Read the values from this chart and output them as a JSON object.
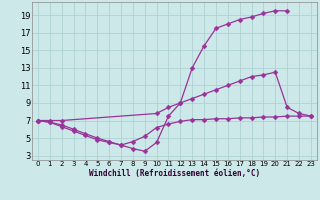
{
  "xlabel": "Windchill (Refroidissement éolien,°C)",
  "bg_color": "#cce8e8",
  "line_color": "#993399",
  "xlim": [
    -0.5,
    23.5
  ],
  "ylim": [
    2.5,
    20.5
  ],
  "xticks": [
    0,
    1,
    2,
    3,
    4,
    5,
    6,
    7,
    8,
    9,
    10,
    11,
    12,
    13,
    14,
    15,
    16,
    17,
    18,
    19,
    20,
    21,
    22,
    23
  ],
  "yticks": [
    3,
    5,
    7,
    9,
    11,
    13,
    15,
    17,
    19
  ],
  "curve_upper_x": [
    0,
    1,
    2,
    3,
    4,
    5,
    6,
    7,
    8,
    9,
    10,
    11,
    12,
    13,
    14,
    15,
    16,
    17,
    18,
    19,
    20,
    21
  ],
  "curve_upper_y": [
    7.0,
    6.8,
    6.5,
    6.0,
    5.5,
    5.0,
    4.6,
    4.2,
    3.8,
    3.5,
    4.5,
    7.5,
    9.0,
    13.0,
    15.5,
    17.5,
    18.0,
    18.5,
    18.8,
    19.2,
    19.5,
    19.5
  ],
  "curve_flat_x": [
    0,
    1,
    2,
    3,
    4,
    5,
    6,
    7,
    8,
    9,
    10,
    11,
    12,
    13,
    14,
    15,
    16,
    17,
    18,
    19,
    20,
    21,
    22,
    23
  ],
  "curve_flat_y": [
    7.0,
    6.8,
    6.3,
    5.8,
    5.3,
    4.8,
    4.5,
    4.2,
    4.6,
    5.2,
    6.2,
    6.6,
    6.9,
    7.1,
    7.1,
    7.2,
    7.2,
    7.3,
    7.3,
    7.4,
    7.4,
    7.5,
    7.5,
    7.5
  ],
  "curve_mid_x": [
    0,
    1,
    2,
    10,
    11,
    12,
    13,
    14,
    15,
    16,
    17,
    18,
    19,
    20,
    21,
    22,
    23
  ],
  "curve_mid_y": [
    7.0,
    7.0,
    7.0,
    7.8,
    8.5,
    9.0,
    9.5,
    10.0,
    10.5,
    11.0,
    11.5,
    12.0,
    12.2,
    12.5,
    8.5,
    7.8,
    7.5
  ],
  "grid_color": "#aacece",
  "xlabel_color": "#330033",
  "tick_x_fontsize": 5.0,
  "tick_y_fontsize": 6.0,
  "xlabel_fontsize": 5.5,
  "lw": 0.9,
  "ms": 2.5
}
